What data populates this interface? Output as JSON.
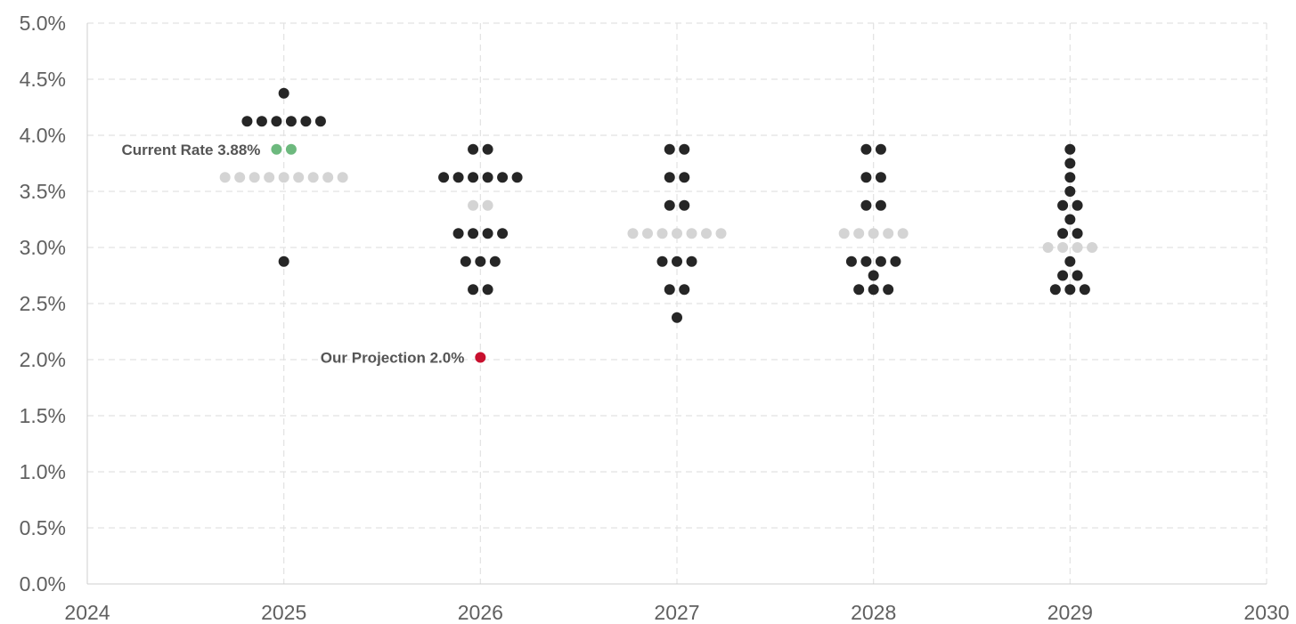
{
  "chart_data": {
    "type": "scatter",
    "subtype": "dot-plot",
    "title": "",
    "xlabel": "",
    "ylabel": "",
    "xlim": [
      2024,
      2030
    ],
    "ylim": [
      0,
      5.0
    ],
    "x_ticks": [
      "2024",
      "2025",
      "2026",
      "2027",
      "2028",
      "2029",
      "2030"
    ],
    "y_ticks": [
      "0.0%",
      "0.5%",
      "1.0%",
      "1.5%",
      "2.0%",
      "2.5%",
      "3.0%",
      "3.5%",
      "4.0%",
      "4.5%",
      "5.0%"
    ],
    "grid": true,
    "colors": {
      "dot": "#262626",
      "median": "#d4d4d4",
      "current": "#6db97e",
      "projection": "#c8102e",
      "grid": "#e2e2e2",
      "text": "#606060",
      "annotation": "#555555"
    },
    "groups": [
      {
        "year": 2025,
        "rows": [
          {
            "rate": 4.375,
            "count": 1,
            "kind": "dot"
          },
          {
            "rate": 4.125,
            "count": 6,
            "kind": "dot"
          },
          {
            "rate": 3.875,
            "count": 2,
            "kind": "current"
          },
          {
            "rate": 3.625,
            "count": 9,
            "kind": "median"
          },
          {
            "rate": 2.875,
            "count": 1,
            "kind": "dot"
          }
        ]
      },
      {
        "year": 2026,
        "rows": [
          {
            "rate": 3.875,
            "count": 2,
            "kind": "dot"
          },
          {
            "rate": 3.625,
            "count": 6,
            "kind": "dot"
          },
          {
            "rate": 3.375,
            "count": 2,
            "kind": "median"
          },
          {
            "rate": 3.125,
            "count": 4,
            "kind": "dot"
          },
          {
            "rate": 2.875,
            "count": 3,
            "kind": "dot"
          },
          {
            "rate": 2.625,
            "count": 2,
            "kind": "dot"
          },
          {
            "rate": 2.02,
            "count": 1,
            "kind": "projection"
          }
        ]
      },
      {
        "year": 2027,
        "rows": [
          {
            "rate": 3.875,
            "count": 2,
            "kind": "dot"
          },
          {
            "rate": 3.625,
            "count": 2,
            "kind": "dot"
          },
          {
            "rate": 3.375,
            "count": 2,
            "kind": "dot"
          },
          {
            "rate": 3.125,
            "count": 7,
            "kind": "median"
          },
          {
            "rate": 2.875,
            "count": 3,
            "kind": "dot"
          },
          {
            "rate": 2.625,
            "count": 2,
            "kind": "dot"
          },
          {
            "rate": 2.375,
            "count": 1,
            "kind": "dot"
          }
        ]
      },
      {
        "year": 2028,
        "rows": [
          {
            "rate": 3.875,
            "count": 2,
            "kind": "dot"
          },
          {
            "rate": 3.625,
            "count": 2,
            "kind": "dot"
          },
          {
            "rate": 3.375,
            "count": 2,
            "kind": "dot"
          },
          {
            "rate": 3.125,
            "count": 5,
            "kind": "median"
          },
          {
            "rate": 2.875,
            "count": 4,
            "kind": "dot"
          },
          {
            "rate": 2.75,
            "count": 1,
            "kind": "dot"
          },
          {
            "rate": 2.625,
            "count": 3,
            "kind": "dot"
          }
        ]
      },
      {
        "year": 2029,
        "rows": [
          {
            "rate": 3.875,
            "count": 1,
            "kind": "dot"
          },
          {
            "rate": 3.75,
            "count": 1,
            "kind": "dot"
          },
          {
            "rate": 3.625,
            "count": 1,
            "kind": "dot"
          },
          {
            "rate": 3.5,
            "count": 1,
            "kind": "dot"
          },
          {
            "rate": 3.375,
            "count": 2,
            "kind": "dot"
          },
          {
            "rate": 3.25,
            "count": 1,
            "kind": "dot"
          },
          {
            "rate": 3.125,
            "count": 2,
            "kind": "dot"
          },
          {
            "rate": 3.0,
            "count": 4,
            "kind": "median"
          },
          {
            "rate": 2.875,
            "count": 1,
            "kind": "dot"
          },
          {
            "rate": 2.75,
            "count": 2,
            "kind": "dot"
          },
          {
            "rate": 2.625,
            "count": 3,
            "kind": "dot"
          }
        ]
      }
    ],
    "annotations": [
      {
        "text": "Current Rate 3.88%",
        "x": 2025,
        "y": 3.88,
        "kind": "current"
      },
      {
        "text": "Our Projection 2.0%",
        "x": 2026,
        "y": 2.0,
        "kind": "projection"
      }
    ]
  }
}
